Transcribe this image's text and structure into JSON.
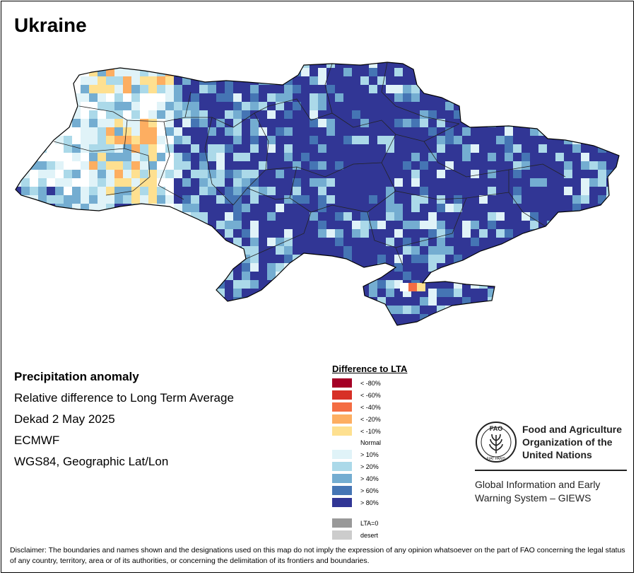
{
  "title": "Ukraine",
  "info": {
    "heading": "Precipitation anomaly",
    "line1": "Relative difference to Long Term Average",
    "line2": "Dekad 2 May 2025",
    "line3": "ECMWF",
    "line4": "WGS84, Geographic Lat/Lon"
  },
  "legend": {
    "title": "Difference to LTA",
    "items": [
      {
        "label": "< -80%",
        "color": "#a50026"
      },
      {
        "label": "< -60%",
        "color": "#d73027"
      },
      {
        "label": "< -40%",
        "color": "#f46d43"
      },
      {
        "label": "< -20%",
        "color": "#fdae61"
      },
      {
        "label": "< -10%",
        "color": "#fee090"
      },
      {
        "label": "Normal",
        "color": ""
      },
      {
        "label": "> 10%",
        "color": "#e0f3f8"
      },
      {
        "label": "> 20%",
        "color": "#abd9e9"
      },
      {
        "label": "> 40%",
        "color": "#74add1"
      },
      {
        "label": "> 60%",
        "color": "#4575b4"
      },
      {
        "label": "> 80%",
        "color": "#313695"
      }
    ],
    "extra": [
      {
        "label": "LTA=0",
        "color": "#999999"
      },
      {
        "label": "desert",
        "color": "#cccccc"
      }
    ]
  },
  "fao": {
    "name_line1": "Food and Agriculture",
    "name_line2": "Organization of the",
    "name_line3": "United Nations",
    "logo_text": "FAO",
    "logo_ring": "FIAT PANIS",
    "system_line1": "Global Information and Early",
    "system_line2": "Warning System – GIEWS"
  },
  "disclaimer": "Disclaimer: The boundaries and names shown and the designations used on this map do not imply the expression of any opinion whatsoever on the part of FAO concerning the legal status of any country, territory, area or of its authorities, or concerning the delimitation of its frontiers and boundaries."
}
